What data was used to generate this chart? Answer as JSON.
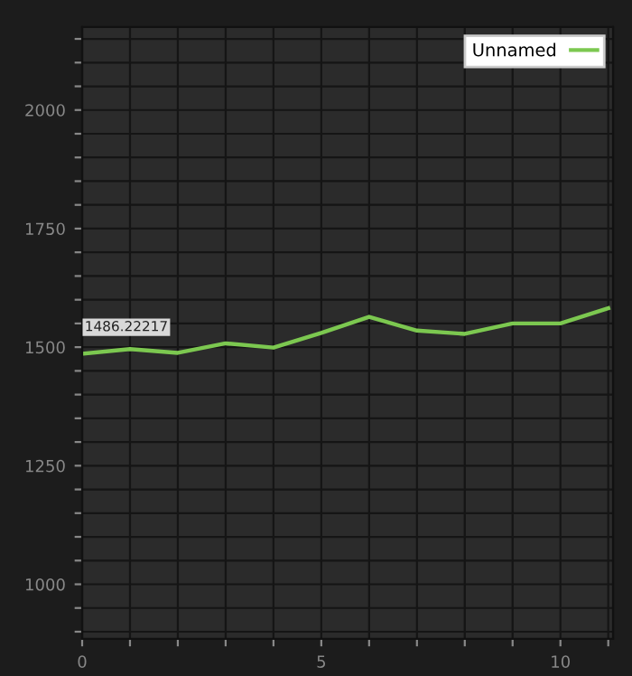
{
  "chart_data": {
    "type": "line",
    "x": [
      0,
      1,
      2,
      3,
      4,
      5,
      6,
      7,
      8,
      9,
      10,
      11
    ],
    "series": [
      {
        "name": "Unnamed",
        "color": "#7cc850",
        "values": [
          1486.22217,
          1496,
          1488,
          1508,
          1499,
          1530,
          1564,
          1535,
          1528,
          1550,
          1550,
          1582
        ],
        "value_labels": [
          "1486.22217",
          null,
          null,
          null,
          null,
          null,
          null,
          null,
          null,
          null,
          null,
          null
        ]
      }
    ],
    "xlim": [
      0,
      11.1
    ],
    "ylim": [
      885,
      2175
    ],
    "xticks": [
      0,
      {
        "value": 1,
        "label": null
      },
      {
        "value": 2,
        "label": null
      },
      {
        "value": 3,
        "label": null
      },
      {
        "value": 4,
        "label": null
      },
      5,
      {
        "value": 6,
        "label": null
      },
      {
        "value": 7,
        "label": null
      },
      {
        "value": 8,
        "label": null
      },
      {
        "value": 9,
        "label": null
      },
      10,
      {
        "value": 11,
        "label": null
      }
    ],
    "yticks": [
      {
        "value": 900,
        "label": null
      },
      {
        "value": 950,
        "label": null
      },
      1000,
      {
        "value": 1050,
        "label": null
      },
      {
        "value": 1100,
        "label": null
      },
      {
        "value": 1150,
        "label": null
      },
      {
        "value": 1200,
        "label": null
      },
      1250,
      {
        "value": 1300,
        "label": null
      },
      {
        "value": 1350,
        "label": null
      },
      {
        "value": 1400,
        "label": null
      },
      {
        "value": 1450,
        "label": null
      },
      1500,
      {
        "value": 1550,
        "label": null
      },
      {
        "value": 1600,
        "label": null
      },
      {
        "value": 1650,
        "label": null
      },
      {
        "value": 1700,
        "label": null
      },
      1750,
      {
        "value": 1800,
        "label": null
      },
      {
        "value": 1850,
        "label": null
      },
      {
        "value": 1900,
        "label": null
      },
      {
        "value": 1950,
        "label": null
      },
      2000,
      {
        "value": 2050,
        "label": null
      },
      {
        "value": 2100,
        "label": null
      },
      {
        "value": 2150,
        "label": null
      }
    ],
    "grid": true,
    "legend": "top right",
    "marker": "none",
    "line_style": "solid"
  }
}
